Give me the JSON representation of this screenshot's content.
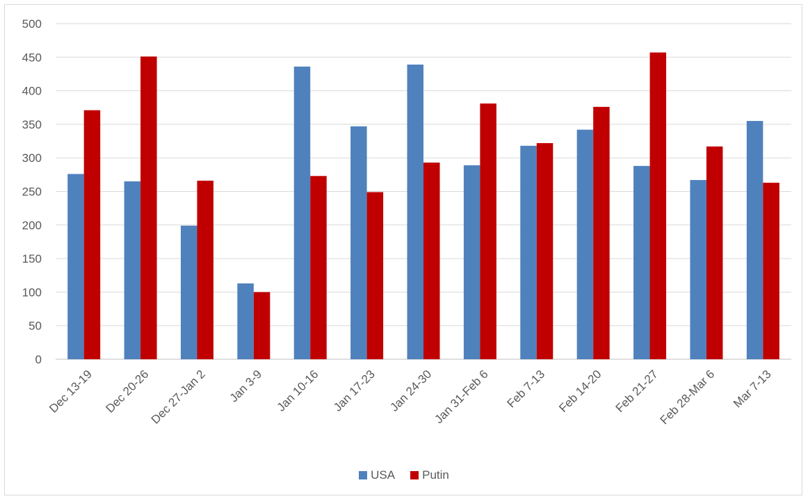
{
  "chart_data": {
    "type": "bar",
    "categories": [
      "Dec 13-19",
      "Dec 20-26",
      "Dec 27-Jan 2",
      "Jan 3-9",
      "Jan 10-16",
      "Jan 17-23",
      "Jan 24-30",
      "Jan 31-Feb 6",
      "Feb 7-13",
      "Feb 14-20",
      "Feb 21-27",
      "Feb 28-Mar 6",
      "Mar 7-13"
    ],
    "series": [
      {
        "name": "USA",
        "color": "#4f81bd",
        "values": [
          276,
          265,
          199,
          113,
          436,
          347,
          439,
          289,
          318,
          342,
          288,
          267,
          355
        ]
      },
      {
        "name": "Putin",
        "color": "#c00000",
        "values": [
          371,
          451,
          266,
          100,
          273,
          249,
          293,
          381,
          322,
          376,
          457,
          317,
          263
        ]
      }
    ],
    "yticks": [
      "0",
      "50",
      "100",
      "150",
      "200",
      "250",
      "300",
      "350",
      "400",
      "450",
      "500"
    ],
    "ylim": [
      0,
      500
    ],
    "grid": true,
    "legend_position": "bottom"
  }
}
